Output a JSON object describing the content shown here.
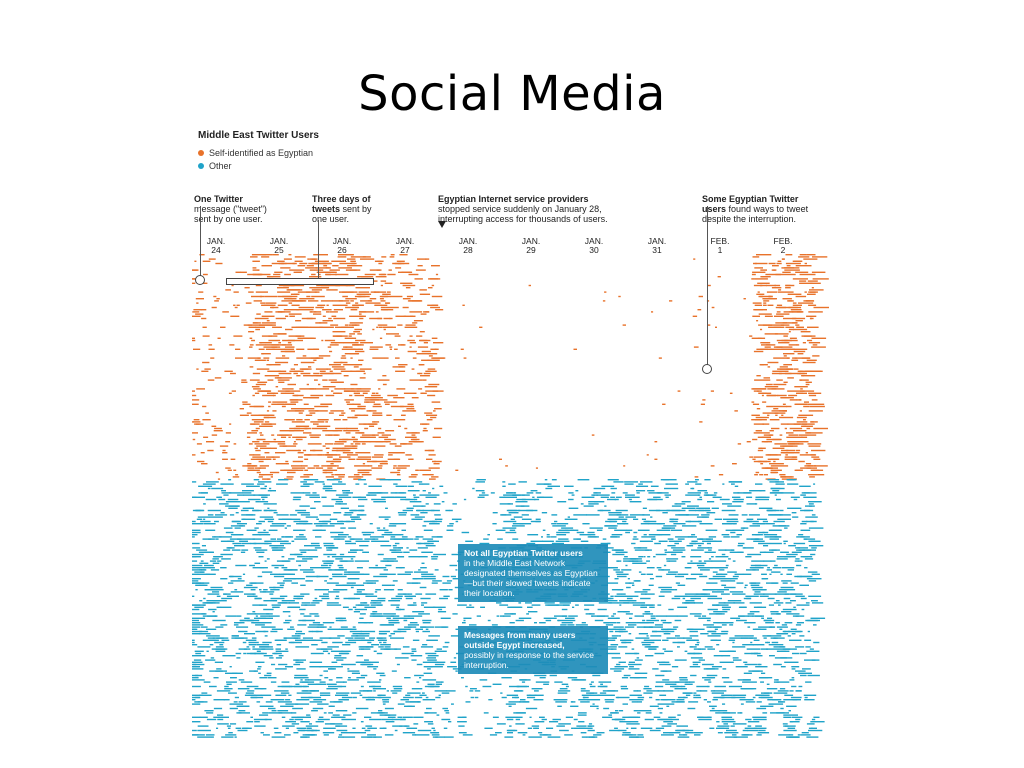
{
  "slide": {
    "title": "Social Media"
  },
  "figure": {
    "title": "Middle East Twitter Users",
    "legend": [
      {
        "label": "Self-identified as Egyptian",
        "color": "#e8722a"
      },
      {
        "label": "Other",
        "color": "#1fa3c9"
      }
    ],
    "annotations": {
      "one_tweet_bold": "One Twitter",
      "one_tweet_rest": "message (\"tweet\")\nsent by one user.",
      "three_days_bold": "Three days of\ntweets",
      "three_days_rest": " sent by\none user.",
      "isp_bold": "Egyptian Internet service providers",
      "isp_rest": "stopped service suddenly on January 28,\ninterrupting access for thousands of users.",
      "some_users_bold": "Some Egyptian Twitter\nusers",
      "some_users_rest": " found ways to tweet\ndespite the interruption."
    },
    "callouts": {
      "not_all_bold": "Not all Egyptian Twitter users",
      "not_all_rest": "in the Middle East Network designated themselves as Egyptian—but their slowed tweets indicate their location.",
      "messages_bold": "Messages from many users outside Egypt increased,",
      "messages_rest": "possibly in response to the service interruption."
    }
  },
  "chart_data": {
    "type": "scatter",
    "title": "Middle East Twitter Users",
    "x_categories": [
      {
        "month": "JAN.",
        "day": "24"
      },
      {
        "month": "JAN.",
        "day": "25"
      },
      {
        "month": "JAN.",
        "day": "26"
      },
      {
        "month": "JAN.",
        "day": "27"
      },
      {
        "month": "JAN.",
        "day": "28"
      },
      {
        "month": "JAN.",
        "day": "29"
      },
      {
        "month": "JAN.",
        "day": "30"
      },
      {
        "month": "JAN.",
        "day": "31"
      },
      {
        "month": "FEB.",
        "day": "1"
      },
      {
        "month": "FEB.",
        "day": "2"
      }
    ],
    "series": [
      {
        "name": "Self-identified as Egyptian",
        "color": "#e8722a",
        "relative_density": [
          0.45,
          0.85,
          0.85,
          0.7,
          0.08,
          0.08,
          0.1,
          0.1,
          0.18,
          0.9
        ]
      },
      {
        "name": "Other",
        "color": "#1fa3c9",
        "relative_density": [
          0.75,
          0.8,
          0.8,
          0.78,
          0.5,
          0.75,
          0.75,
          0.78,
          0.8,
          0.8
        ]
      }
    ],
    "grid": false,
    "legend_placement": "top-left"
  }
}
